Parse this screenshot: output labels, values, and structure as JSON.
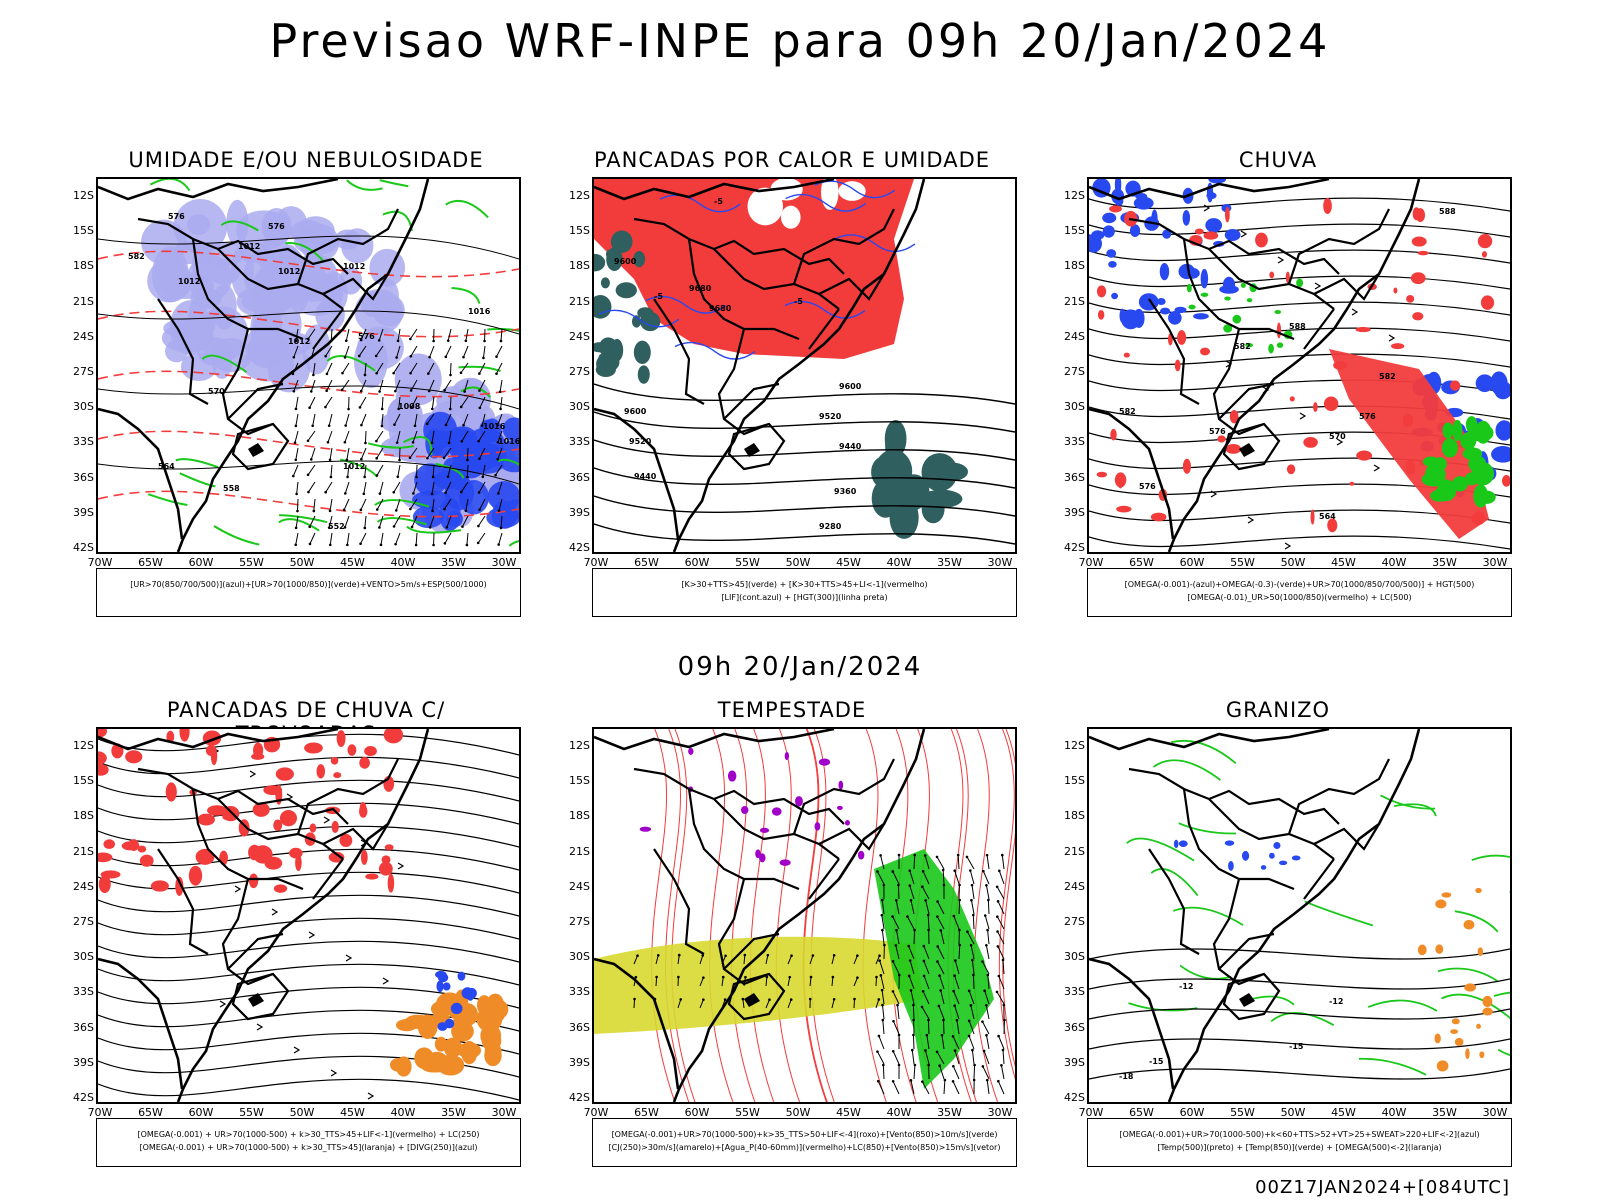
{
  "header": {
    "title": "Previsao WRF-INPE  para 09h 20/Jan/2024"
  },
  "middle_label": "09h 20/Jan/2024",
  "footer": {
    "stamp": "00Z17JAN2024+[084UTC]"
  },
  "axes": {
    "lat_labels": [
      "12S",
      "15S",
      "18S",
      "21S",
      "24S",
      "27S",
      "30S",
      "33S",
      "36S",
      "39S",
      "42S"
    ],
    "lon_labels": [
      "70W",
      "65W",
      "60W",
      "55W",
      "50W",
      "45W",
      "40W",
      "35W",
      "30W"
    ]
  },
  "panels": [
    {
      "id": "umidade",
      "title": "UMIDADE E/OU NEBULOSIDADE",
      "legend": [
        "[UR>70(850/700/500)](azul)+[UR>70(1000/850)](verde)+VENTO>5m/s+ESP(500/1000)"
      ],
      "contour_labels": [
        "1012",
        "1012",
        "1012",
        "1012",
        "1012",
        "1016",
        "1016",
        "1008",
        "1012",
        "1016",
        "570",
        "576",
        "576",
        "582",
        "564",
        "558",
        "552",
        "576"
      ]
    },
    {
      "id": "pancadas-calor",
      "title": "PANCADAS POR CALOR E UMIDADE",
      "legend": [
        "[K>30+TTS>45](verde) + [K>30+TTS>45+LI<-1](vermelho)",
        "[LIF](cont.azul) + [HGT(300)](linha preta)"
      ],
      "contour_labels": [
        "9600",
        "9520",
        "9440",
        "9360",
        "9280",
        "9680",
        "9680",
        "9600",
        "9600",
        "9520",
        "9440",
        "-5",
        "-5",
        "-5"
      ]
    },
    {
      "id": "chuva",
      "title": "CHUVA",
      "legend": [
        "[OMEGA(-0.001)-(azul)+OMEGA(-0.3)-(verde)+UR>70(1000/850/700/500)] + HGT(500)",
        "[OMEGA(-0.01)_UR>50(1000/850)(vermelho) + LC(500)"
      ],
      "contour_labels": [
        "588",
        "582",
        "576",
        "570",
        "582",
        "576",
        "582",
        "576",
        "564",
        "588"
      ]
    },
    {
      "id": "pancadas-trovoadas",
      "title": "PANCADAS DE CHUVA C/ TROVOADAS",
      "legend": [
        "[OMEGA(-0.001) + UR>70(1000-500) + k>30_TTS>45+LIF<-1](vermelho) + LC(250)",
        "[OMEGA(-0.001) + UR>70(1000-500) + k>30_TTS>45](laranja) + [DIVG(250)](azul)"
      ],
      "contour_labels": []
    },
    {
      "id": "tempestade",
      "title": "TEMPESTADE",
      "legend": [
        "[OMEGA(-0.001)+UR>70(1000-500)+k>35_TTS>50+LIF<-4](roxo)+[Vento(850)>10m/s](verde)",
        "[CJ(250)>30m/s](amarelo)+[Agua_P(40-60mm)](vermelho)+LC(850)+[Vento(850)>15m/s](vetor)"
      ],
      "contour_labels": []
    },
    {
      "id": "granizo",
      "title": "GRANIZO",
      "legend": [
        "[OMEGA(-0.001)+UR>70(1000-500)+k<60+TTS>52+VT>25+SWEAT>220+LIF<-2](azul)",
        "[Temp(500)](preto) + [Temp(850)](verde) + [OMEGA(500)<-2](laranja)"
      ],
      "contour_labels": [
        "-12",
        "-15",
        "-12",
        "-15",
        "-18"
      ]
    }
  ],
  "colors": {
    "red": "#f23c3c",
    "green": "#19c819",
    "blue": "#2848f0",
    "lavender": "#aaaaf0",
    "darkteal": "#2f5f5f",
    "yellow": "#d8d830",
    "orange": "#f08c28",
    "purple": "#a000c8"
  }
}
